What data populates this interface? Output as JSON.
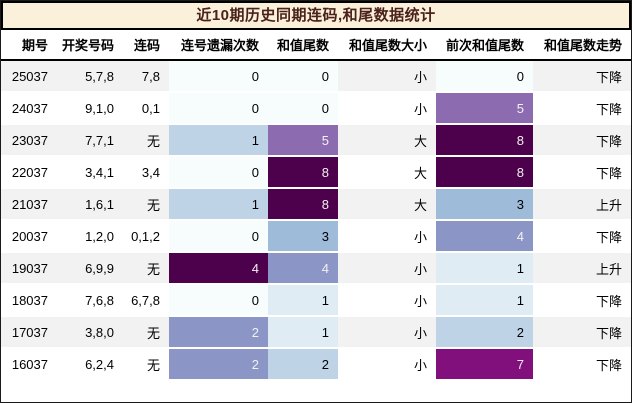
{
  "title": "近10期历史同期连码,和尾数据统计",
  "table": {
    "columns": [
      "期号",
      "开奖号码",
      "连码",
      "连号遗漏次数",
      "和值尾数",
      "和值尾数大小",
      "前次和值尾数",
      "和值尾数走势"
    ],
    "rows": [
      {
        "period": "25037",
        "numbers": "5,7,8",
        "lianma": "7,8",
        "miss": {
          "value": "0",
          "bg": "#f7fcfd",
          "fg": "#000000"
        },
        "sum_tail": {
          "value": "0",
          "bg": "#f7fcfd",
          "fg": "#000000"
        },
        "size": "小",
        "prev_tail": {
          "value": "0",
          "bg": "#f7fcfd",
          "fg": "#000000"
        },
        "trend": "下降"
      },
      {
        "period": "24037",
        "numbers": "9,1,0",
        "lianma": "0,1",
        "miss": {
          "value": "0",
          "bg": "#f7fcfd",
          "fg": "#000000"
        },
        "sum_tail": {
          "value": "0",
          "bg": "#f7fcfd",
          "fg": "#000000"
        },
        "size": "小",
        "prev_tail": {
          "value": "5",
          "bg": "#8c6bb1",
          "fg": "#f1f1f1"
        },
        "trend": "下降"
      },
      {
        "period": "23037",
        "numbers": "7,7,1",
        "lianma": "无",
        "miss": {
          "value": "1",
          "bg": "#bfd3e6",
          "fg": "#000000"
        },
        "sum_tail": {
          "value": "5",
          "bg": "#8c6bb1",
          "fg": "#f1f1f1"
        },
        "size": "大",
        "prev_tail": {
          "value": "8",
          "bg": "#4d004b",
          "fg": "#f1f1f1"
        },
        "trend": "下降"
      },
      {
        "period": "22037",
        "numbers": "3,4,1",
        "lianma": "3,4",
        "miss": {
          "value": "0",
          "bg": "#f7fcfd",
          "fg": "#000000"
        },
        "sum_tail": {
          "value": "8",
          "bg": "#4d004b",
          "fg": "#f1f1f1"
        },
        "size": "大",
        "prev_tail": {
          "value": "8",
          "bg": "#4d004b",
          "fg": "#f1f1f1"
        },
        "trend": "下降"
      },
      {
        "period": "21037",
        "numbers": "1,6,1",
        "lianma": "无",
        "miss": {
          "value": "1",
          "bg": "#bfd3e6",
          "fg": "#000000"
        },
        "sum_tail": {
          "value": "8",
          "bg": "#4d004b",
          "fg": "#f1f1f1"
        },
        "size": "大",
        "prev_tail": {
          "value": "3",
          "bg": "#9ebcda",
          "fg": "#000000"
        },
        "trend": "上升"
      },
      {
        "period": "20037",
        "numbers": "1,2,0",
        "lianma": "0,1,2",
        "miss": {
          "value": "0",
          "bg": "#f7fcfd",
          "fg": "#000000"
        },
        "sum_tail": {
          "value": "3",
          "bg": "#9ebcda",
          "fg": "#000000"
        },
        "size": "小",
        "prev_tail": {
          "value": "4",
          "bg": "#8c96c6",
          "fg": "#f1f1f1"
        },
        "trend": "下降"
      },
      {
        "period": "19037",
        "numbers": "6,9,9",
        "lianma": "无",
        "miss": {
          "value": "4",
          "bg": "#4d004b",
          "fg": "#f1f1f1"
        },
        "sum_tail": {
          "value": "4",
          "bg": "#8c96c6",
          "fg": "#f1f1f1"
        },
        "size": "小",
        "prev_tail": {
          "value": "1",
          "bg": "#e0ecf4",
          "fg": "#000000"
        },
        "trend": "上升"
      },
      {
        "period": "18037",
        "numbers": "7,6,8",
        "lianma": "6,7,8",
        "miss": {
          "value": "0",
          "bg": "#f7fcfd",
          "fg": "#000000"
        },
        "sum_tail": {
          "value": "1",
          "bg": "#e0ecf4",
          "fg": "#000000"
        },
        "size": "小",
        "prev_tail": {
          "value": "1",
          "bg": "#e0ecf4",
          "fg": "#000000"
        },
        "trend": "下降"
      },
      {
        "period": "17037",
        "numbers": "3,8,0",
        "lianma": "无",
        "miss": {
          "value": "2",
          "bg": "#8c96c6",
          "fg": "#f1f1f1"
        },
        "sum_tail": {
          "value": "1",
          "bg": "#e0ecf4",
          "fg": "#000000"
        },
        "size": "小",
        "prev_tail": {
          "value": "2",
          "bg": "#bfd3e6",
          "fg": "#000000"
        },
        "trend": "下降"
      },
      {
        "period": "16037",
        "numbers": "6,2,4",
        "lianma": "无",
        "miss": {
          "value": "2",
          "bg": "#8c96c6",
          "fg": "#f1f1f1"
        },
        "sum_tail": {
          "value": "2",
          "bg": "#bfd3e6",
          "fg": "#000000"
        },
        "size": "小",
        "prev_tail": {
          "value": "7",
          "bg": "#810f7c",
          "fg": "#f1f1f1"
        },
        "trend": "下降"
      }
    ]
  },
  "colors": {
    "title_bg": "#fbf0da",
    "title_text": "#4a211b",
    "zebra_odd": "#f2f2f2",
    "zebra_even": "#ffffff",
    "border": "#000000",
    "heat_scale_0_8": [
      "#f7fcfd",
      "#e0ecf4",
      "#bfd3e6",
      "#9ebcda",
      "#8c96c6",
      "#8c6bb1",
      "#88419d",
      "#810f7c",
      "#4d004b"
    ]
  },
  "chart_data": {
    "type": "table",
    "title": "近10期历史同期连码,和尾数据统计",
    "columns": [
      "期号",
      "开奖号码",
      "连码",
      "连号遗漏次数",
      "和值尾数",
      "和值尾数大小",
      "前次和值尾数",
      "和值尾数走势"
    ],
    "rows": [
      [
        "25037",
        "5,7,8",
        "7,8",
        0,
        0,
        "小",
        0,
        "下降"
      ],
      [
        "24037",
        "9,1,0",
        "0,1",
        0,
        0,
        "小",
        5,
        "下降"
      ],
      [
        "23037",
        "7,7,1",
        "无",
        1,
        5,
        "大",
        8,
        "下降"
      ],
      [
        "22037",
        "3,4,1",
        "3,4",
        0,
        8,
        "大",
        8,
        "下降"
      ],
      [
        "21037",
        "1,6,1",
        "无",
        1,
        8,
        "大",
        3,
        "上升"
      ],
      [
        "20037",
        "1,2,0",
        "0,1,2",
        0,
        3,
        "小",
        4,
        "下降"
      ],
      [
        "19037",
        "6,9,9",
        "无",
        4,
        4,
        "小",
        1,
        "上升"
      ],
      [
        "18037",
        "7,6,8",
        "6,7,8",
        0,
        1,
        "小",
        1,
        "下降"
      ],
      [
        "17037",
        "3,8,0",
        "无",
        2,
        1,
        "小",
        2,
        "下降"
      ],
      [
        "16037",
        "6,2,4",
        "无",
        2,
        2,
        "小",
        7,
        "下降"
      ]
    ],
    "heatmap_columns": [
      "连号遗漏次数",
      "和值尾数",
      "前次和值尾数"
    ],
    "colormap": "BuPu",
    "heatmap_ranges": {
      "连号遗漏次数": [
        0,
        4
      ],
      "和值尾数": [
        0,
        8
      ],
      "前次和值尾数": [
        0,
        8
      ]
    }
  }
}
